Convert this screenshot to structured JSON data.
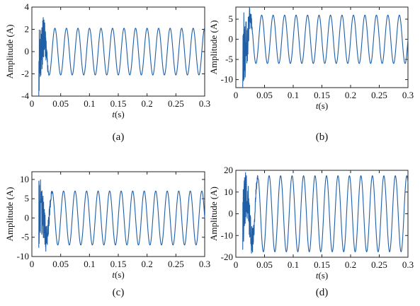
{
  "chart_data": [
    {
      "type": "line",
      "panel_label": "(a)",
      "xlabel": "t(s)",
      "ylabel": "Amplitude (A)",
      "xlim": [
        0,
        0.3
      ],
      "ylim": [
        -4,
        4
      ],
      "xticks": [
        "0",
        "0.05",
        "0.1",
        "0.15",
        "0.2",
        "0.25",
        "0.3"
      ],
      "yticks": [
        "4",
        "2",
        "0",
        "-2",
        "-4"
      ],
      "series_color": "#1f5fa8",
      "signal": {
        "start": 0.012,
        "frequency_hz": 50,
        "steady_amplitude": 2.1,
        "transient_end": 0.03,
        "transient_peak": 3.5,
        "phase_cycles": 0.25
      }
    },
    {
      "type": "line",
      "panel_label": "(b)",
      "xlabel": "t(s)",
      "ylabel": "Amplitude (A)",
      "xlim": [
        0,
        0.3
      ],
      "ylim": [
        -12,
        8
      ],
      "xticks": [
        "0",
        "0.05",
        "0.1",
        "0.15",
        "0.2",
        "0.25",
        "0.3"
      ],
      "yticks": [
        "5",
        "0",
        "-5",
        "-10"
      ],
      "series_color": "#1f5fa8",
      "signal": {
        "start": 0.012,
        "frequency_hz": 50,
        "steady_amplitude": 6,
        "transient_end": 0.03,
        "transient_peak": 11,
        "phase_cycles": 0
      }
    },
    {
      "type": "line",
      "panel_label": "(c)",
      "xlabel": "t(s)",
      "ylabel": "Amplitude (A)",
      "xlim": [
        0,
        0.3
      ],
      "ylim": [
        -10,
        12
      ],
      "xticks": [
        "0",
        "0.05",
        "0.1",
        "0.15",
        "0.2",
        "0.25",
        "0.3"
      ],
      "yticks": [
        "10",
        "5",
        "0",
        "-5",
        "-10"
      ],
      "series_color": "#1f5fa8",
      "signal": {
        "start": 0.012,
        "frequency_hz": 50,
        "steady_amplitude": 7,
        "transient_end": 0.036,
        "transient_peak": 9,
        "phase_cycles": 0.5
      }
    },
    {
      "type": "line",
      "panel_label": "(d)",
      "xlabel": "t(s)",
      "ylabel": "Amplitude (A)",
      "xlim": [
        0,
        0.3
      ],
      "ylim": [
        -20,
        20
      ],
      "xticks": [
        "0",
        "0.05",
        "0.1",
        "0.15",
        "0.2",
        "0.25",
        "0.3"
      ],
      "yticks": [
        "20",
        "10",
        "0",
        "-10",
        "-20"
      ],
      "series_color": "#1f5fa8",
      "signal": {
        "start": 0.012,
        "frequency_hz": 50,
        "steady_amplitude": 17.5,
        "transient_end": 0.04,
        "transient_peak": 15,
        "phase_cycles": 0.35
      }
    }
  ]
}
